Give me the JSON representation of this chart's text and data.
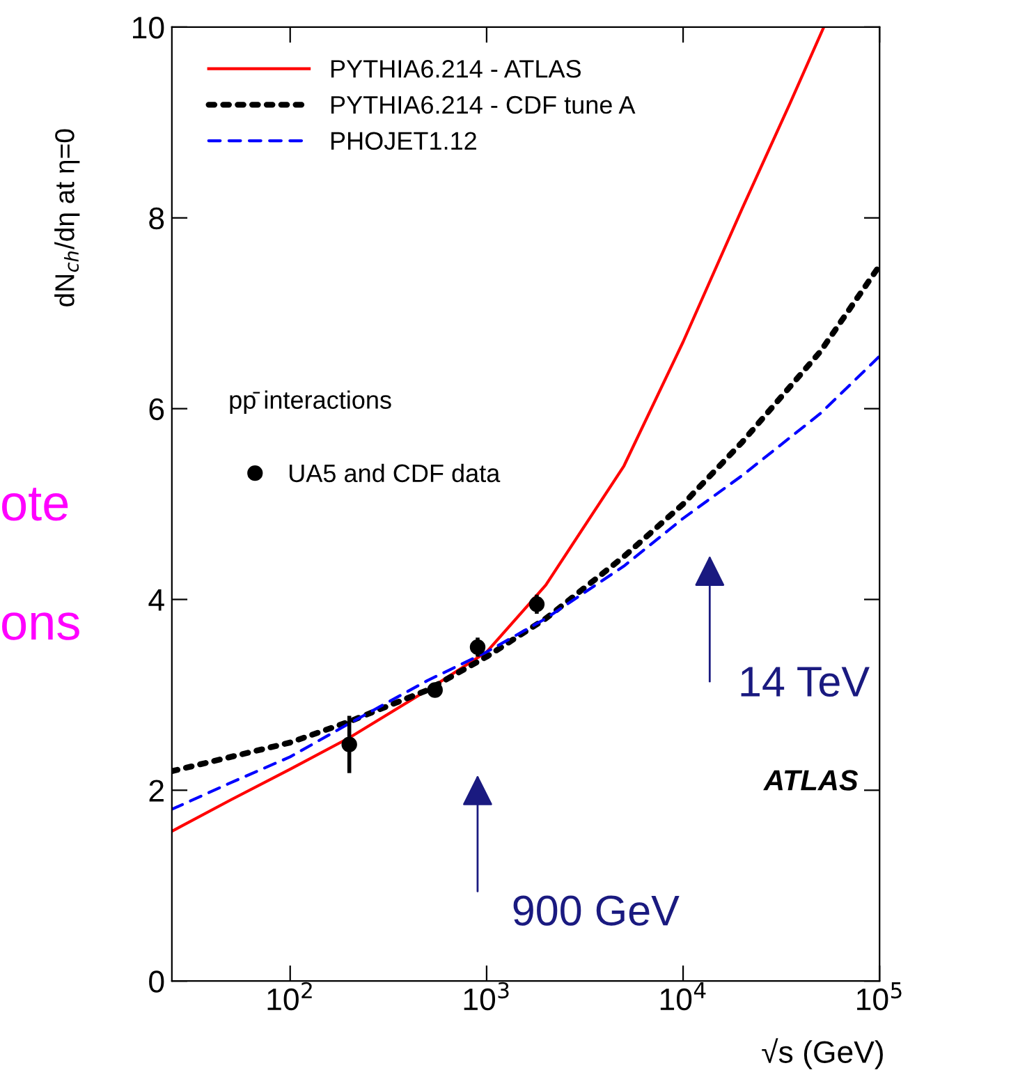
{
  "chart_data": {
    "type": "line",
    "ylabel": "dN$_{ch}$/dη at η=0",
    "xlabel": "√s (GeV)",
    "log": "x",
    "xlim": [
      25,
      100000
    ],
    "ylim": [
      0,
      10
    ],
    "xticks": [
      {
        "value": 100,
        "label": "10$^{2}$"
      },
      {
        "value": 1000,
        "label": "10$^{3}$"
      },
      {
        "value": 10000,
        "label": "10$^{4}$"
      },
      {
        "value": 100000,
        "label": "10$^{5}$"
      }
    ],
    "yticks": [
      0,
      2,
      4,
      6,
      8,
      10
    ],
    "grid": false,
    "legend": "top left",
    "series": [
      {
        "name": "PYTHIA6.214 - ATLAS",
        "color": "#ff0000",
        "line_style": "solid",
        "x": [
          25,
          50,
          100,
          200,
          500,
          1000,
          2000,
          5000,
          10000,
          20000,
          35000,
          52000
        ],
        "values": [
          1.57,
          1.9,
          2.22,
          2.55,
          3.05,
          3.45,
          4.15,
          5.4,
          6.7,
          8.1,
          9.2,
          10
        ]
      },
      {
        "name": "PYTHIA6.214 - CDF tune A",
        "color": "#000000",
        "line_style": "dotted",
        "x": [
          25,
          50,
          100,
          200,
          500,
          1000,
          2000,
          5000,
          10000,
          20000,
          50000,
          100000
        ],
        "values": [
          2.2,
          2.35,
          2.5,
          2.72,
          3.05,
          3.4,
          3.8,
          4.45,
          5.0,
          5.65,
          6.6,
          7.5
        ]
      },
      {
        "name": "PHOJET1.12",
        "color": "#0000ff",
        "line_style": "dashed",
        "x": [
          25,
          50,
          100,
          200,
          500,
          1000,
          2000,
          5000,
          10000,
          20000,
          50000,
          100000
        ],
        "values": [
          1.8,
          2.08,
          2.35,
          2.7,
          3.15,
          3.45,
          3.8,
          4.35,
          4.85,
          5.3,
          5.95,
          6.55
        ]
      },
      {
        "name": "UA5 and CDF data",
        "type": "scatter",
        "color": "#000000",
        "marker": "circle",
        "x": [
          200,
          546,
          900,
          1800
        ],
        "values": [
          2.48,
          3.05,
          3.5,
          3.95
        ],
        "errors": [
          0.3,
          0.05,
          0.1,
          0.1
        ]
      }
    ],
    "annotations": [
      "pp̄ interactions",
      "900 GeV",
      "14 TeV",
      "ATLAS",
      "ote",
      "ons"
    ]
  }
}
